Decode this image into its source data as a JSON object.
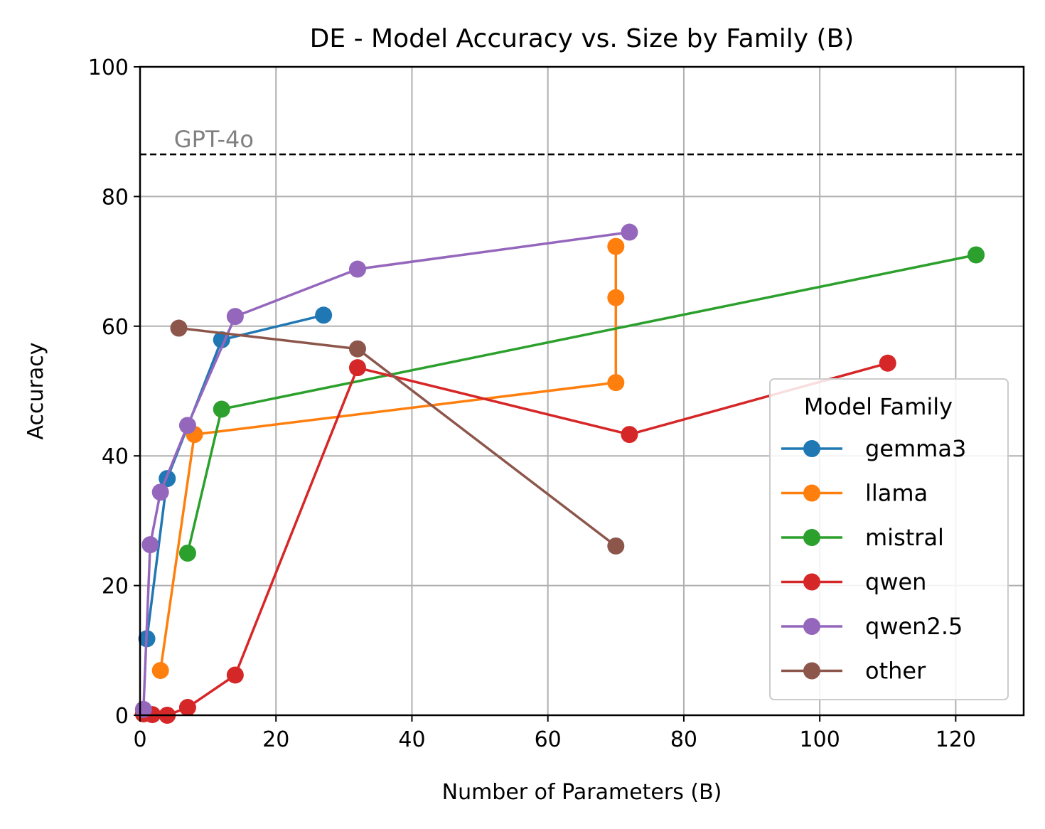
{
  "chart_data": {
    "type": "line",
    "title": "DE - Model Accuracy vs. Size by Family (B)",
    "xlabel": "Number of Parameters (B)",
    "ylabel": "Accuracy",
    "xlim": [
      0,
      130
    ],
    "ylim": [
      0,
      100
    ],
    "xticks": [
      0,
      20,
      40,
      60,
      80,
      100,
      120
    ],
    "yticks": [
      0,
      20,
      40,
      60,
      80,
      100
    ],
    "grid": true,
    "legend": {
      "title": "Model Family",
      "placement": "lower right"
    },
    "reference_line": {
      "label": "GPT-4o",
      "y": 86.5,
      "style": "dashed",
      "color": "#000000"
    },
    "series": [
      {
        "name": "gemma3",
        "color": "#1f77b4",
        "points": [
          [
            1,
            11.8
          ],
          [
            4,
            36.5
          ],
          [
            12,
            57.9
          ],
          [
            27,
            61.7
          ]
        ]
      },
      {
        "name": "llama",
        "color": "#ff7f0e",
        "points": [
          [
            3,
            6.9
          ],
          [
            8,
            43.3
          ],
          [
            70,
            51.3
          ],
          [
            70,
            64.4
          ],
          [
            70,
            72.3
          ]
        ]
      },
      {
        "name": "mistral",
        "color": "#2ca02c",
        "points": [
          [
            7,
            25.0
          ],
          [
            12,
            47.2
          ],
          [
            123,
            71.0
          ]
        ]
      },
      {
        "name": "qwen",
        "color": "#d62728",
        "points": [
          [
            0.5,
            0.2
          ],
          [
            1.8,
            0.1
          ],
          [
            4,
            0.0
          ],
          [
            7,
            1.2
          ],
          [
            14,
            6.2
          ],
          [
            32,
            53.6
          ],
          [
            72,
            43.3
          ],
          [
            110,
            54.3
          ]
        ]
      },
      {
        "name": "qwen2.5",
        "color": "#9467bd",
        "points": [
          [
            0.5,
            0.9
          ],
          [
            1.5,
            26.3
          ],
          [
            3,
            34.4
          ],
          [
            7,
            44.7
          ],
          [
            14,
            61.5
          ],
          [
            32,
            68.8
          ],
          [
            72,
            74.5
          ]
        ]
      },
      {
        "name": "other",
        "color": "#8c564b",
        "points": [
          [
            5.7,
            59.7
          ],
          [
            32,
            56.5
          ],
          [
            70,
            26.1
          ]
        ]
      }
    ]
  }
}
